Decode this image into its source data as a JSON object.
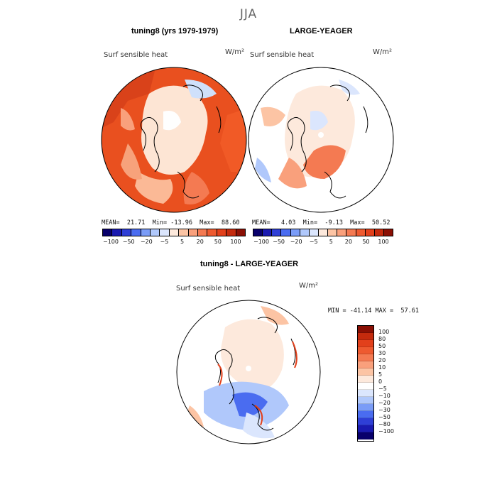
{
  "title": "JJA",
  "panels": {
    "left": {
      "title": "tuning8 (yrs 1979-1979)",
      "field": "Surf sensible heat",
      "units": "W/m²",
      "stats": "MEAN=  21.71  Min= -13.96  Max=  88.60"
    },
    "right": {
      "title": "LARGE-YEAGER",
      "field": "Surf sensible heat",
      "units": "W/m²",
      "stats": "MEAN=   4.03  Min=  -9.13  Max=  50.52"
    },
    "diff": {
      "title": "tuning8 - LARGE-YEAGER",
      "field": "Surf sensible heat",
      "units": "W/m²",
      "stats": "MIN = -41.14 MAX =  57.61"
    }
  },
  "colorbar_top": {
    "labels": [
      "−100",
      "−50",
      "−20",
      "−5",
      "5",
      "20",
      "50",
      "100"
    ],
    "colors": [
      "#08006b",
      "#1a1ab0",
      "#2f3fd6",
      "#4a6cf0",
      "#7a9cf7",
      "#b0c8fb",
      "#dbe6fd",
      "#fde9dc",
      "#fcc4a4",
      "#f9a07c",
      "#f47a52",
      "#ee5a30",
      "#e2401b",
      "#c42a0d",
      "#8a0f04"
    ]
  },
  "colorbar_diff": {
    "labels": [
      "100",
      "80",
      "50",
      "30",
      "20",
      "10",
      "5",
      "0",
      "−5",
      "−10",
      "−20",
      "−30",
      "−50",
      "−80",
      "−100"
    ],
    "colors": [
      "#8a0f04",
      "#c42a0d",
      "#e2401b",
      "#ee5a30",
      "#f47a52",
      "#f9a07c",
      "#fcc4a4",
      "#fde9dc",
      "#ffffff",
      "#dbe6fd",
      "#b0c8fb",
      "#7a9cf7",
      "#4a6cf0",
      "#2f3fd6",
      "#1a1ab0",
      "#08006b"
    ]
  }
}
